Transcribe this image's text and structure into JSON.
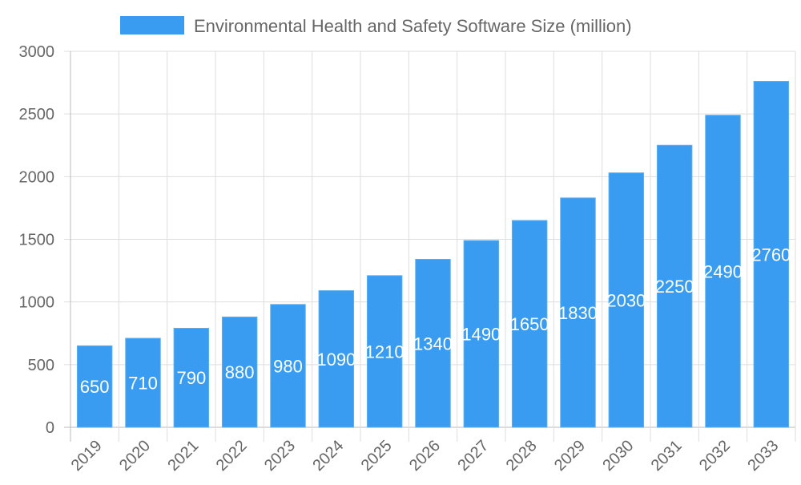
{
  "chart_data": {
    "type": "bar",
    "title": "",
    "xlabel": "",
    "ylabel": "",
    "categories": [
      "2019",
      "2020",
      "2021",
      "2022",
      "2023",
      "2024",
      "2025",
      "2026",
      "2027",
      "2028",
      "2029",
      "2030",
      "2031",
      "2032",
      "2033"
    ],
    "series": [
      {
        "name": "Environmental Health and Safety Software Size (million)",
        "values": [
          650,
          710,
          790,
          880,
          980,
          1090,
          1210,
          1340,
          1490,
          1650,
          1830,
          2030,
          2250,
          2490,
          2760
        ]
      }
    ],
    "ylim": [
      0,
      3000
    ],
    "yticks": [
      0,
      500,
      1000,
      1500,
      2000,
      2500,
      3000
    ],
    "grid": true,
    "legend": "top-center",
    "data_labels": "inside-center",
    "colors": {
      "bar": "#399cf0",
      "bar_border": "#5aaef3",
      "label": "#ffffff",
      "text": "#666666",
      "grid": "#dddddd"
    }
  }
}
